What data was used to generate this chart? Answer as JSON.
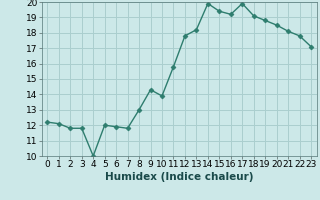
{
  "x": [
    0,
    1,
    2,
    3,
    4,
    5,
    6,
    7,
    8,
    9,
    10,
    11,
    12,
    13,
    14,
    15,
    16,
    17,
    18,
    19,
    20,
    21,
    22,
    23
  ],
  "y": [
    12.2,
    12.1,
    11.8,
    11.8,
    10.0,
    12.0,
    11.9,
    11.8,
    13.0,
    14.3,
    13.9,
    15.8,
    17.8,
    18.2,
    19.9,
    19.4,
    19.2,
    19.9,
    19.1,
    18.8,
    18.5,
    18.1,
    17.8,
    17.1
  ],
  "line_color": "#2e7d6e",
  "marker": "D",
  "marker_size": 2.5,
  "xlabel": "Humidex (Indice chaleur)",
  "xlabel_fontsize": 7.5,
  "ylim": [
    10,
    20
  ],
  "xlim": [
    -0.5,
    23.5
  ],
  "yticks": [
    10,
    11,
    12,
    13,
    14,
    15,
    16,
    17,
    18,
    19,
    20
  ],
  "xticks": [
    0,
    1,
    2,
    3,
    4,
    5,
    6,
    7,
    8,
    9,
    10,
    11,
    12,
    13,
    14,
    15,
    16,
    17,
    18,
    19,
    20,
    21,
    22,
    23
  ],
  "bg_color": "#cce8e8",
  "grid_color": "#aacece",
  "tick_fontsize": 6.5,
  "linewidth": 1.0
}
